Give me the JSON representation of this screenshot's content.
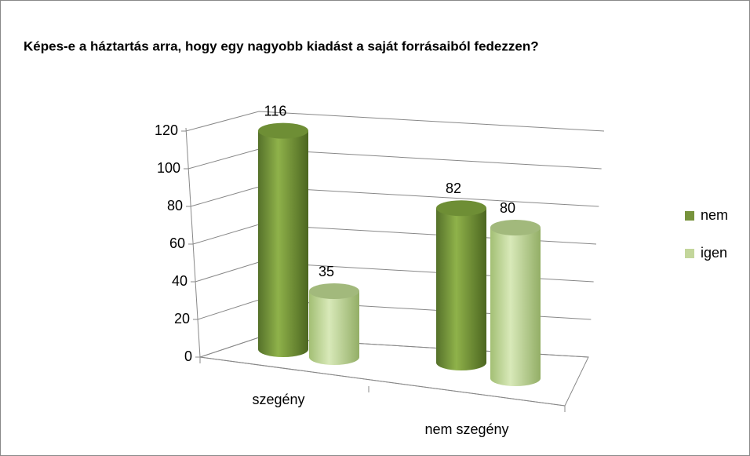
{
  "chart_data": {
    "type": "bar3d",
    "title": "Képes-e a háztartás arra, hogy egy nagyobb kiadást a saját forrásaiból fedezzen?",
    "categories": [
      "szegény",
      "nem szegény"
    ],
    "series": [
      {
        "name": "nem",
        "color": "#77933c",
        "values": [
          116,
          82
        ]
      },
      {
        "name": "igen",
        "color": "#c3d69b",
        "values": [
          35,
          80
        ]
      }
    ],
    "ylim": [
      0,
      120
    ],
    "yticks": [
      0,
      20,
      40,
      60,
      80,
      100,
      120
    ],
    "grid": true,
    "legend": "right"
  }
}
